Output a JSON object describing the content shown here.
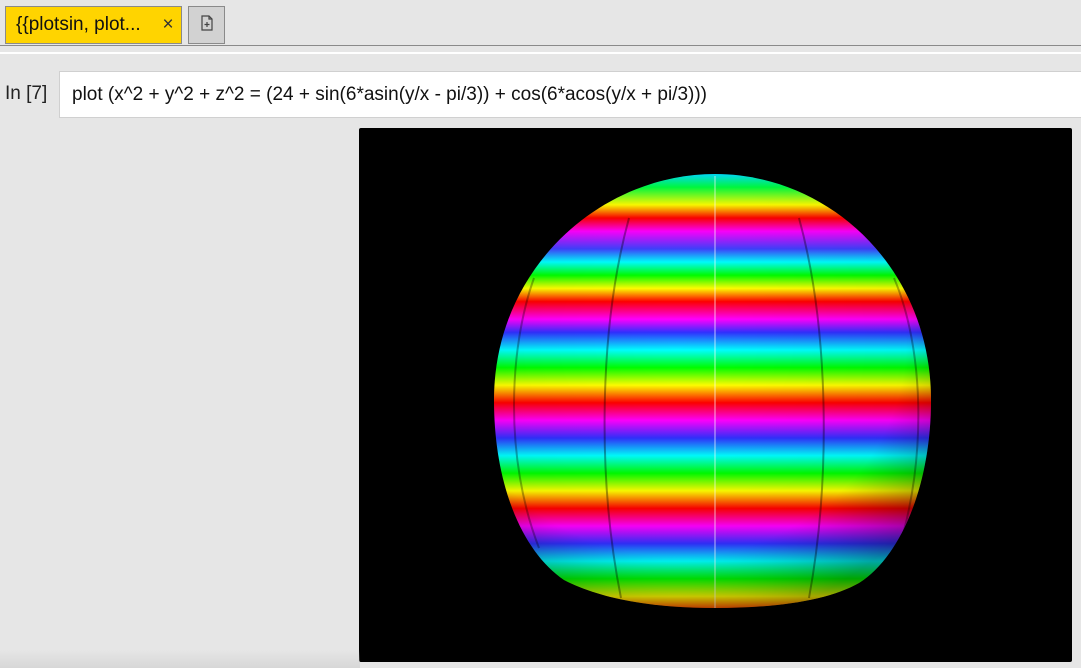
{
  "tabs": [
    {
      "label": "{{plotsin, plot...",
      "close_label": "×",
      "active": true
    }
  ],
  "new_tab": {
    "icon": "new-file-icon"
  },
  "cell": {
    "prompt": "In [7]",
    "input": "plot (x^2 + y^2 + z^2 = (24 + sin(6*asin(y/x - pi/3)) + cos(6*acos(y/x + pi/3)))"
  },
  "colors": {
    "tab_active": "#ffd400",
    "plot_background": "#000000",
    "page_background": "#e6e6e6"
  }
}
